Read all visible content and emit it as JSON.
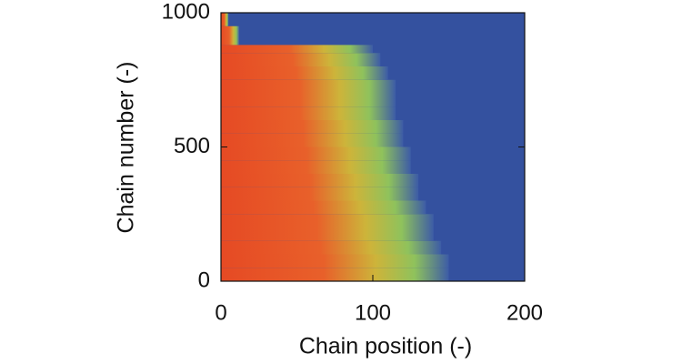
{
  "chart_data": {
    "type": "heatmap",
    "xlabel": "Chain position (-)",
    "ylabel": "Chain number (-)",
    "xlim": [
      0,
      200
    ],
    "xticks": [
      0,
      100,
      200
    ],
    "ylim": [
      0,
      1000
    ],
    "yticks": [
      0,
      500,
      1000
    ],
    "ybins": [
      0,
      50,
      100,
      150,
      200,
      250,
      300,
      350,
      400,
      450,
      500,
      550,
      600,
      650,
      700,
      750,
      800,
      850,
      880,
      950,
      1000
    ],
    "values": [
      150,
      150,
      145,
      140,
      140,
      135,
      130,
      130,
      125,
      125,
      120,
      120,
      115,
      115,
      115,
      110,
      105,
      100,
      12,
      5
    ],
    "background": "#34519f"
  }
}
